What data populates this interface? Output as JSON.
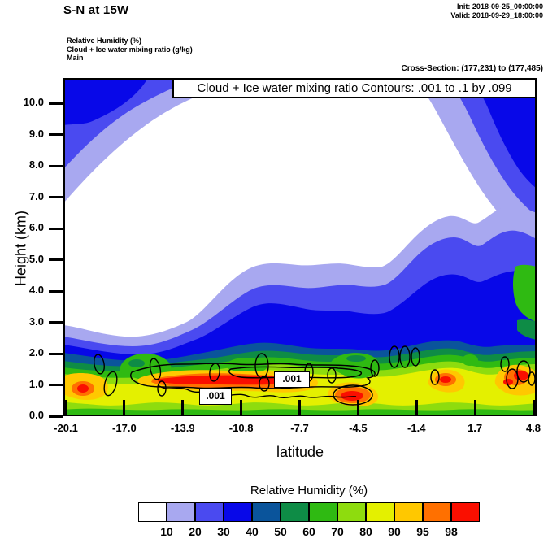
{
  "header": {
    "title": "S-N at 15W",
    "init": "Init: 2018-09-25_00:00:00",
    "valid": "Valid: 2018-09-29_18:00:00"
  },
  "legend": {
    "line1": "Relative Humidity (%)",
    "line2": "Cloud + Ice water mixing ratio (g/kg)",
    "line3": "Main"
  },
  "cross_section": "Cross-Section: (177,231) to (177,485)",
  "plot": {
    "contour_box": "Cloud + Ice water mixing ratio Contours: .001 to .1 by .099",
    "contour_label": ".001"
  },
  "axes": {
    "x": {
      "title": "latitude",
      "ticks": [
        "-20.1",
        "-17.0",
        "-13.9",
        "-10.8",
        "-7.7",
        "-4.5",
        "-1.4",
        "1.7",
        "4.8"
      ]
    },
    "y": {
      "title": "Height (km)",
      "ticks": [
        "0.0",
        "1.0",
        "2.0",
        "3.0",
        "4.0",
        "5.0",
        "6.0",
        "7.0",
        "8.0",
        "9.0",
        "10.0"
      ]
    }
  },
  "palette": {
    "white": "#ffffff",
    "lavender": "#a8a8f0",
    "blue_violet": "#4a4af0",
    "blue": "#0808e8",
    "navy": "#0a549b",
    "dark_green": "#0e8c46",
    "green": "#2fba12",
    "yellow_green": "#8edc0e",
    "yellow": "#e4f000",
    "orange": "#ffc800",
    "deep_orange": "#ff7000",
    "red": "#fa0f00",
    "contour_line": "#000000"
  },
  "colorbar": {
    "title": "Relative Humidity (%)",
    "labels": [
      "10",
      "20",
      "30",
      "40",
      "50",
      "60",
      "70",
      "80",
      "90",
      "95",
      "98"
    ],
    "colors": [
      "#ffffff",
      "#a8a8f0",
      "#4a4af0",
      "#0808e8",
      "#0a549b",
      "#0e8c46",
      "#2fba12",
      "#8edc0e",
      "#e4f000",
      "#ffc800",
      "#ff7000",
      "#fa0f00"
    ]
  },
  "chart_data": {
    "type": "contour",
    "title": "S-N at 15W",
    "xlabel": "latitude",
    "ylabel": "Height (km)",
    "xlim": [
      -20.1,
      4.8
    ],
    "ylim": [
      0,
      10.8
    ],
    "x_ticks": [
      -20.1,
      -17.0,
      -13.9,
      -10.8,
      -7.7,
      -4.5,
      -1.4,
      1.7,
      4.8
    ],
    "y_ticks": [
      0,
      1,
      2,
      3,
      4,
      5,
      6,
      7,
      8,
      9,
      10
    ],
    "fill_variable": "Relative Humidity (%)",
    "fill_levels": [
      10,
      20,
      30,
      40,
      50,
      60,
      70,
      80,
      90,
      95,
      98
    ],
    "fill_colors": [
      "#ffffff",
      "#a8a8f0",
      "#4a4af0",
      "#0808e8",
      "#0a549b",
      "#0e8c46",
      "#2fba12",
      "#8edc0e",
      "#e4f000",
      "#ffc800",
      "#ff7000",
      "#fa0f00"
    ],
    "line_variable": "Cloud + Ice water mixing ratio (g/kg)",
    "line_levels": [
      0.001,
      0.1
    ],
    "line_level_rule": ".001 to .1 by .099",
    "init_time": "2018-09-25_00:00:00",
    "valid_time": "2018-09-29_18:00:00",
    "section": "(177,231) to (177,485)",
    "features": [
      {
        "region": "boundary layer 0-2 km across all latitudes",
        "rh": "80-98+, red core (>98) near 1 km between lat -17 and -7 and isolated spots near -4.5, -1.5 and 4"
      },
      {
        "region": "mid troposphere 3-9 km, lat -18 to 0 (domain center)",
        "rh": "<10 (dry white region)"
      },
      {
        "region": "upper-left corner, 8.5-10.8 km near lat -20 to -14",
        "rh": "20-50, blue core at top edge"
      },
      {
        "region": "upper-right corner, 8-10.8 km near lat 2 to 4.8",
        "rh": "20-50, blue core at top right"
      },
      {
        "region": "moist layer rising northward from 2.5 km at lat -20 to ~6 km at lat 4.8",
        "rh": "20-60, blue core 40-50 between lat -8 and 4.8 at 2-4 km"
      },
      {
        "region": "cloud + ice mixing ratio 0.001 g/kg closed contours in lowest 2 km, scattered along section",
        "value": 0.001
      }
    ]
  }
}
